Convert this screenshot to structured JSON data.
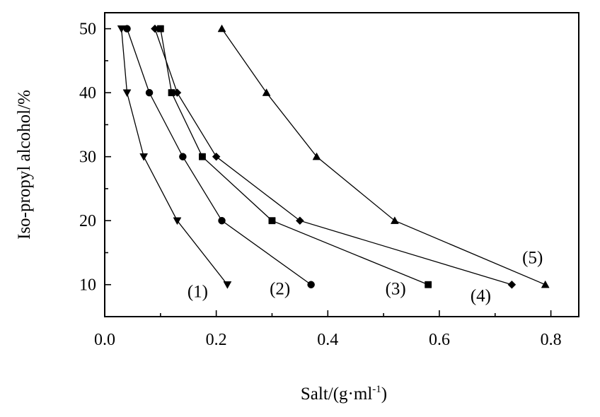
{
  "chart_data": {
    "type": "line",
    "xlabel": "Salt/(g·ml",
    "xlabel_sup": "-1",
    "xlabel_close": ")",
    "ylabel": "Iso-propyl alcohol/%",
    "xlim": [
      0.0,
      0.85
    ],
    "ylim": [
      5,
      52.5
    ],
    "xticks": [
      0.0,
      0.2,
      0.4,
      0.6,
      0.8
    ],
    "xtick_labels": [
      "0.0",
      "0.2",
      "0.4",
      "0.6",
      "0.8"
    ],
    "yticks": [
      10,
      20,
      30,
      40,
      50
    ],
    "ytick_labels": [
      "10",
      "20",
      "30",
      "40",
      "50"
    ],
    "grid": false,
    "legend": "none",
    "series": [
      {
        "label": "(1)",
        "marker": "triangle-down",
        "points": [
          [
            0.03,
            50
          ],
          [
            0.04,
            40
          ],
          [
            0.07,
            30
          ],
          [
            0.13,
            20
          ],
          [
            0.22,
            10
          ]
        ]
      },
      {
        "label": "(2)",
        "marker": "circle",
        "points": [
          [
            0.04,
            50
          ],
          [
            0.08,
            40
          ],
          [
            0.14,
            30
          ],
          [
            0.21,
            20
          ],
          [
            0.37,
            10
          ]
        ]
      },
      {
        "label": "(3)",
        "marker": "square",
        "points": [
          [
            0.1,
            50
          ],
          [
            0.12,
            40
          ],
          [
            0.175,
            30
          ],
          [
            0.3,
            20
          ],
          [
            0.58,
            10
          ]
        ]
      },
      {
        "label": "(4)",
        "marker": "diamond",
        "points": [
          [
            0.09,
            50
          ],
          [
            0.13,
            40
          ],
          [
            0.2,
            30
          ],
          [
            0.35,
            20
          ],
          [
            0.73,
            10
          ]
        ]
      },
      {
        "label": "(5)",
        "marker": "triangle-up",
        "points": [
          [
            0.21,
            50
          ],
          [
            0.29,
            40
          ],
          [
            0.38,
            30
          ],
          [
            0.52,
            20
          ],
          [
            0.79,
            10
          ]
        ]
      }
    ]
  }
}
